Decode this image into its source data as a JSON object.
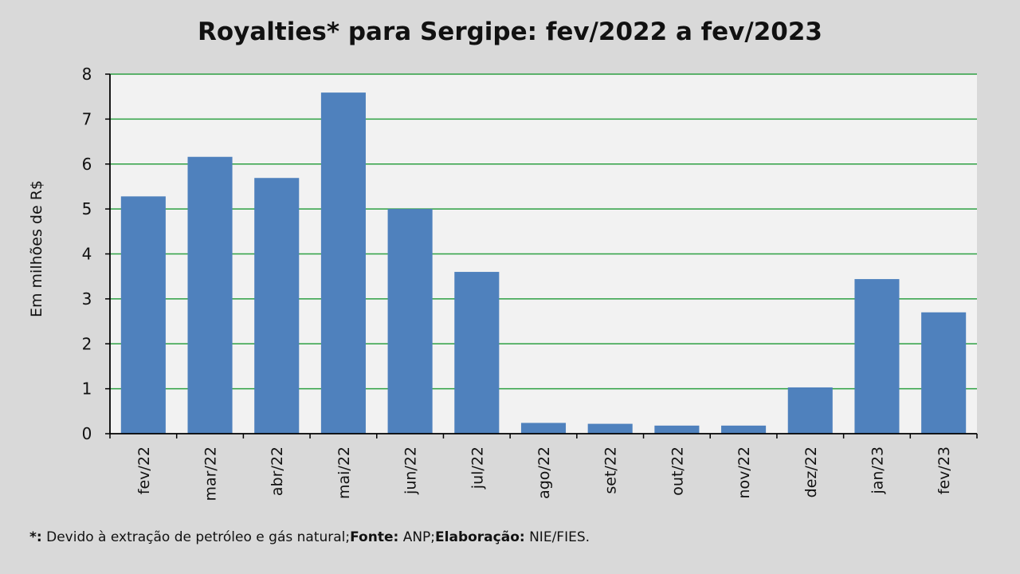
{
  "chart_data": {
    "type": "bar",
    "title": "Royalties* para Sergipe: fev/2022 a fev/2023",
    "xlabel": "",
    "ylabel": "Em milhões de R$",
    "ylim": [
      0,
      8
    ],
    "yticks": [
      0,
      1,
      2,
      3,
      4,
      5,
      6,
      7,
      8
    ],
    "grid": true,
    "categories": [
      "fev/22",
      "mar/22",
      "abr/22",
      "mai/22",
      "jun/22",
      "jul/22",
      "ago/22",
      "set/22",
      "out/22",
      "nov/22",
      "dez/22",
      "jan/23",
      "fev/23"
    ],
    "values": [
      5.28,
      6.16,
      5.69,
      7.59,
      5.0,
      3.6,
      0.24,
      0.22,
      0.18,
      0.18,
      1.03,
      3.44,
      2.7
    ]
  },
  "colors": {
    "bar": "#4f81bd",
    "grid": "#2ea043",
    "plot_bg": "#f2f2f2",
    "page_bg": "#d9d9d9"
  },
  "footnote": {
    "star_label": "*:",
    "star_text": " Devido à extração de petróleo e gás natural;",
    "source_label": "Fonte:",
    "source_text": " ANP;",
    "credit_label": "Elaboração:",
    "credit_text": " NIE/FIES."
  }
}
